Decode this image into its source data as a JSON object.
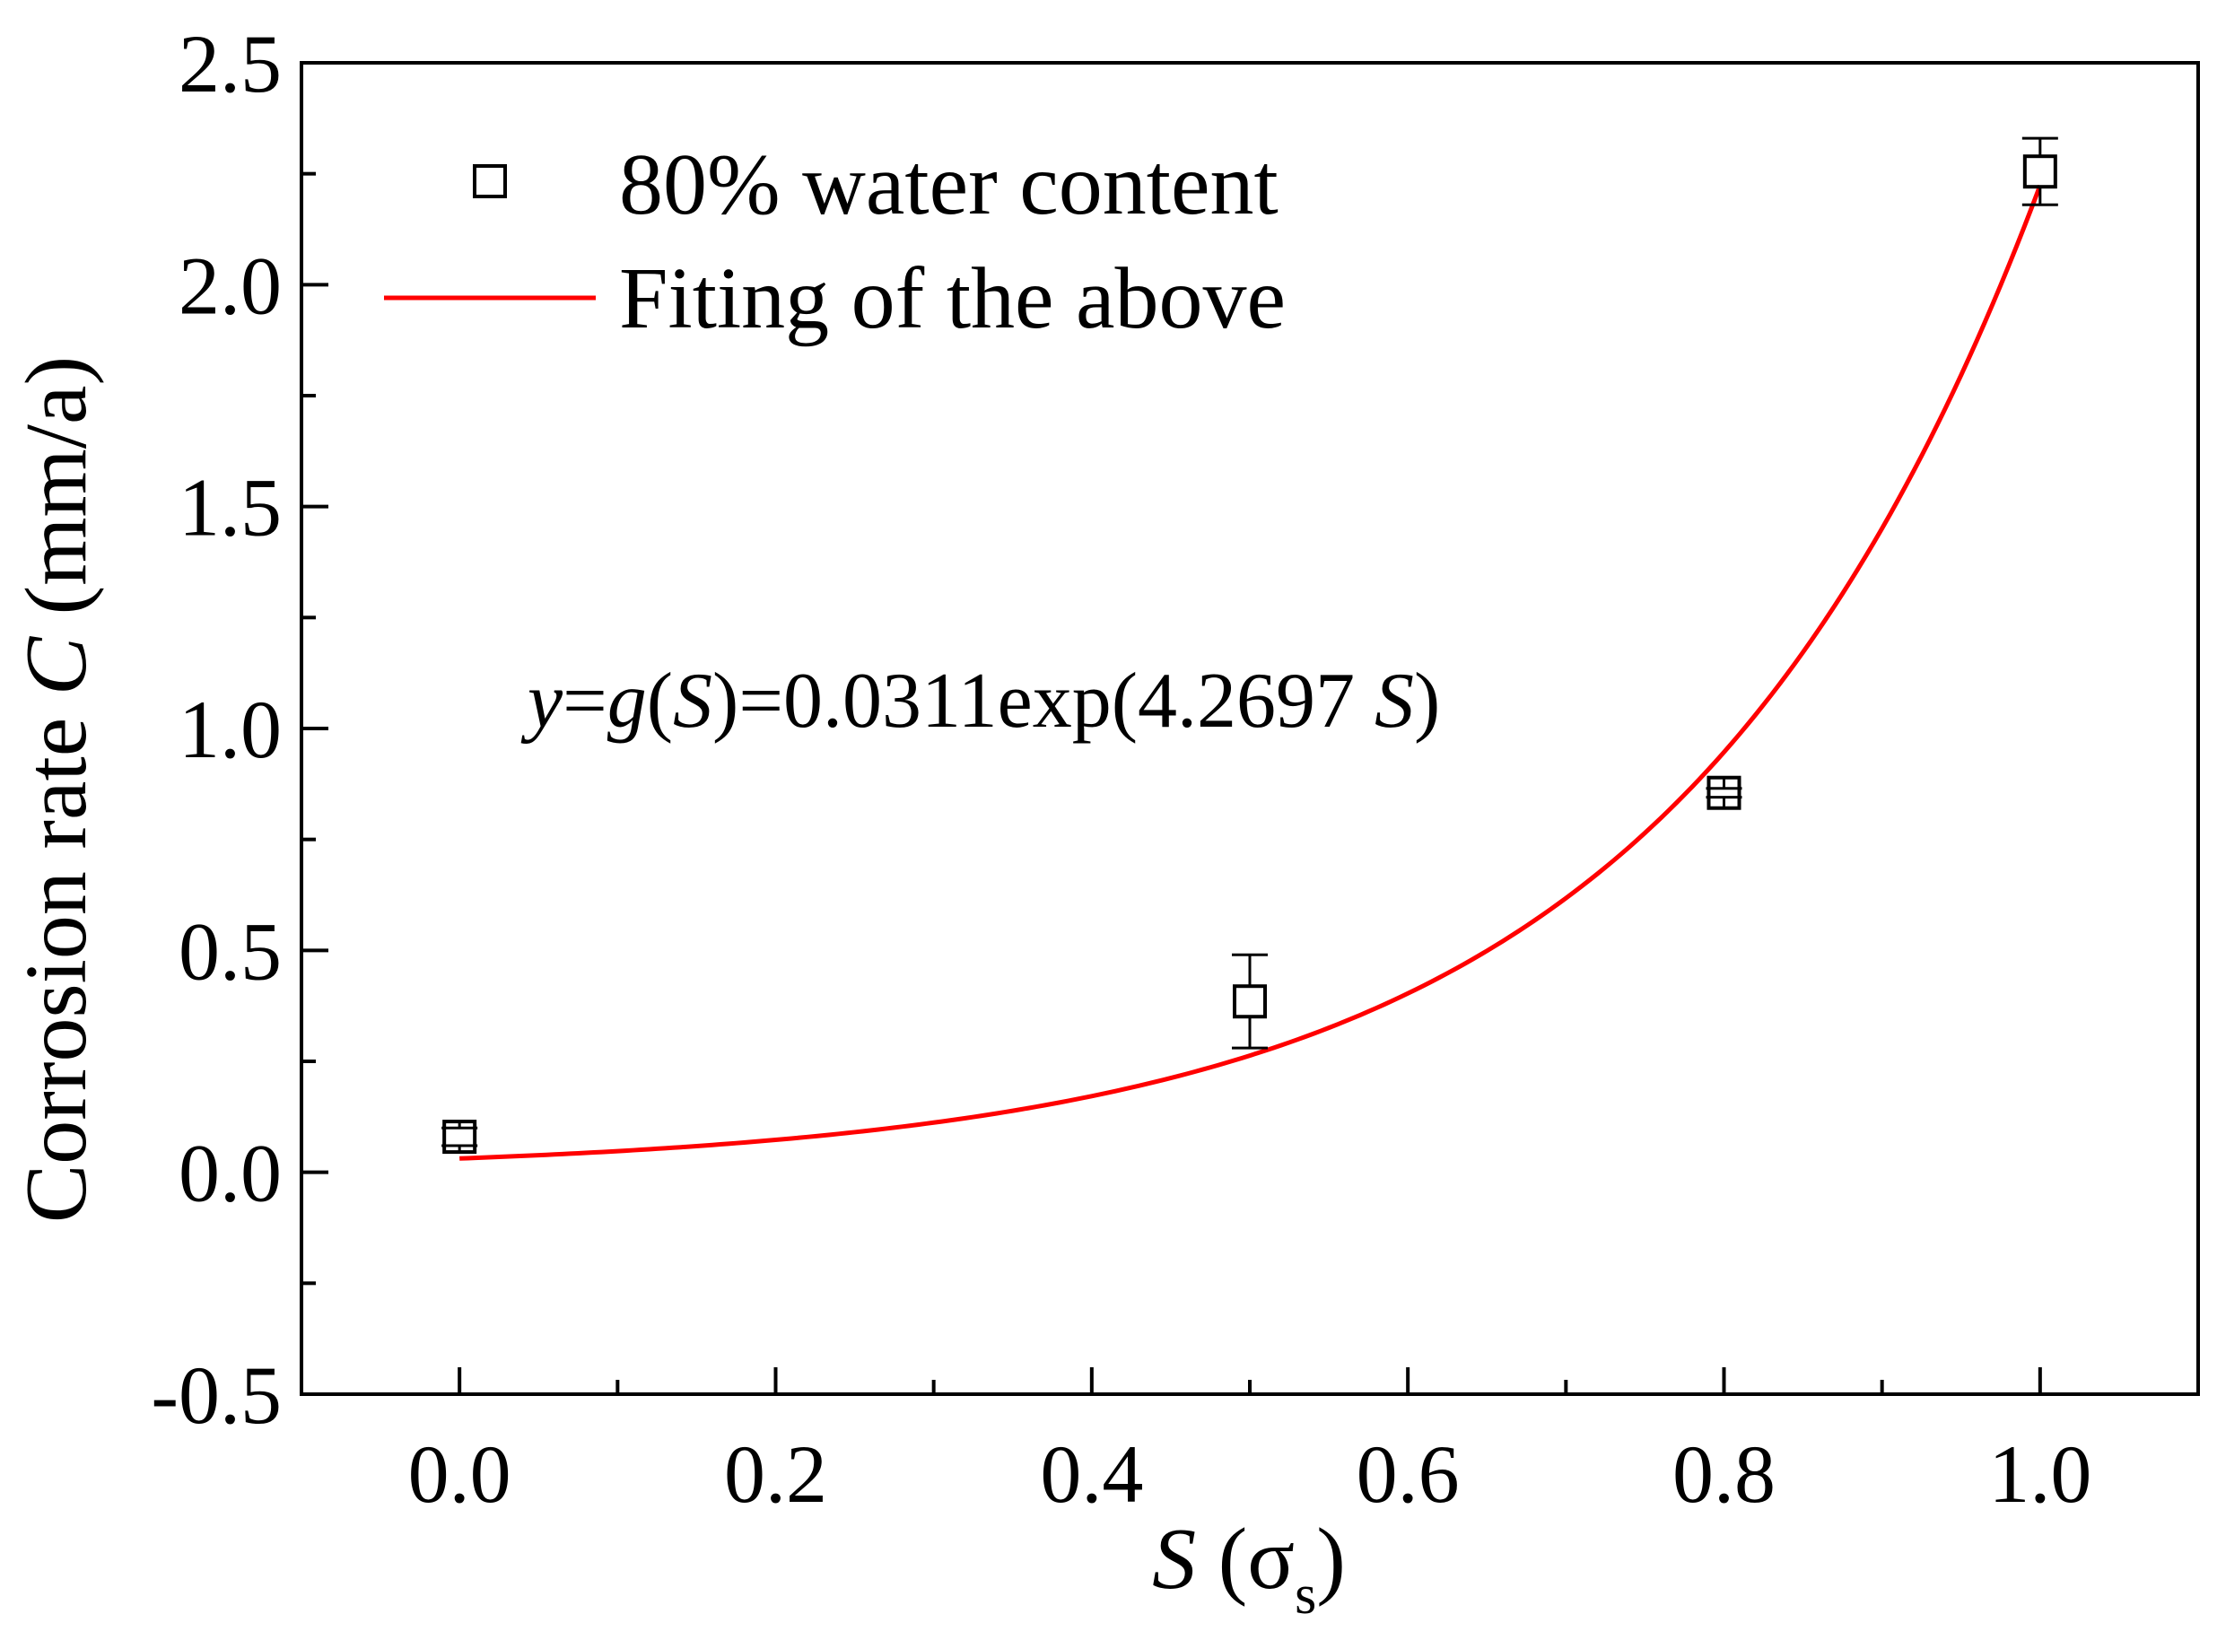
{
  "chart_data": {
    "type": "scatter",
    "xlabel": {
      "var": "S",
      "unit_open": " (σ",
      "unit_sub": "s",
      "unit_close": ")"
    },
    "ylabel": {
      "prefix": "Corrosion rate ",
      "var": "C",
      "suffix": " (mm/a)"
    },
    "xlim": [
      -0.1,
      1.1
    ],
    "ylim": [
      -0.5,
      2.5
    ],
    "x_ticks": [
      "0.0",
      "0.2",
      "0.4",
      "0.6",
      "0.8",
      "1.0"
    ],
    "y_ticks": [
      "-0.5",
      "0.0",
      "0.5",
      "1.0",
      "1.5",
      "2.0",
      "2.5"
    ],
    "grid": false,
    "legend_position": "top-left",
    "series": [
      {
        "name": "80% water content",
        "marker": "open-square",
        "color": "#000000",
        "x": [
          0.0,
          0.5,
          0.8,
          1.0
        ],
        "y": [
          0.08,
          0.385,
          0.855,
          2.255
        ],
        "yerr": [
          0.02,
          0.105,
          0.01,
          0.075
        ]
      },
      {
        "name": "Fiting of the above",
        "kind": "fit-line",
        "color": "#ff0000",
        "a": 0.0311,
        "b": 4.2697,
        "x_range": [
          0.0,
          1.0
        ]
      }
    ],
    "annotation": {
      "parts": [
        {
          "text": "y",
          "italic": true
        },
        {
          "text": "=",
          "italic": false
        },
        {
          "text": "g",
          "italic": true
        },
        {
          "text": "(",
          "italic": false
        },
        {
          "text": "S",
          "italic": true
        },
        {
          "text": ")=0.0311exp(4.2697 ",
          "italic": false
        },
        {
          "text": "S",
          "italic": true
        },
        {
          "text": ")",
          "italic": false
        }
      ]
    }
  }
}
